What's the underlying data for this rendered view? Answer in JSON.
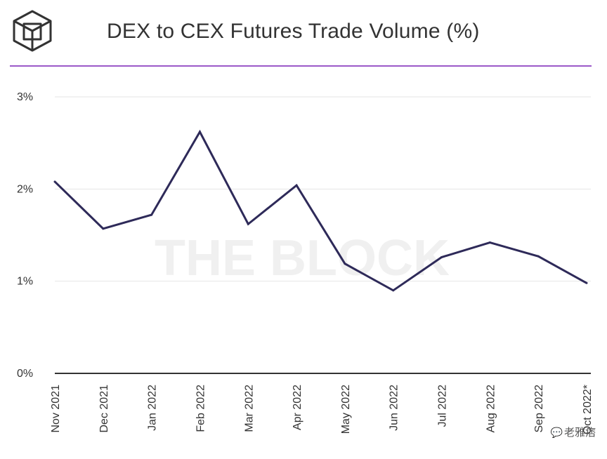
{
  "header": {
    "title": "DEX to CEX Futures Trade Volume (%)"
  },
  "colors": {
    "line": "#2e2a59",
    "divider": "#9b59c9",
    "grid": "#e6e6e6",
    "axis": "#333333",
    "text": "#333333",
    "watermark": "#f0f0f0"
  },
  "background_watermark": "THE BLOCK",
  "chart_data": {
    "type": "line",
    "title": "DEX to CEX Futures Trade Volume (%)",
    "xlabel": "",
    "ylabel": "",
    "categories": [
      "Nov 2021",
      "Dec 2021",
      "Jan 2022",
      "Feb 2022",
      "Mar 2022",
      "Apr 2022",
      "May 2022",
      "Jun 2022",
      "Jul 2022",
      "Aug 2022",
      "Sep 2022",
      "Oct 2022*"
    ],
    "series": [
      {
        "values": [
          2.08,
          1.57,
          1.72,
          2.62,
          1.62,
          2.04,
          1.19,
          0.9,
          1.26,
          1.42,
          1.27,
          0.98
        ]
      }
    ],
    "yticks": [
      "0%",
      "1%",
      "2%",
      "3%"
    ],
    "ylim": [
      0,
      3
    ],
    "grid": true,
    "legend": "none"
  },
  "watermark_overlay": {
    "icon": "wechat-icon",
    "glyph": "💬",
    "text": "老雅痞"
  }
}
